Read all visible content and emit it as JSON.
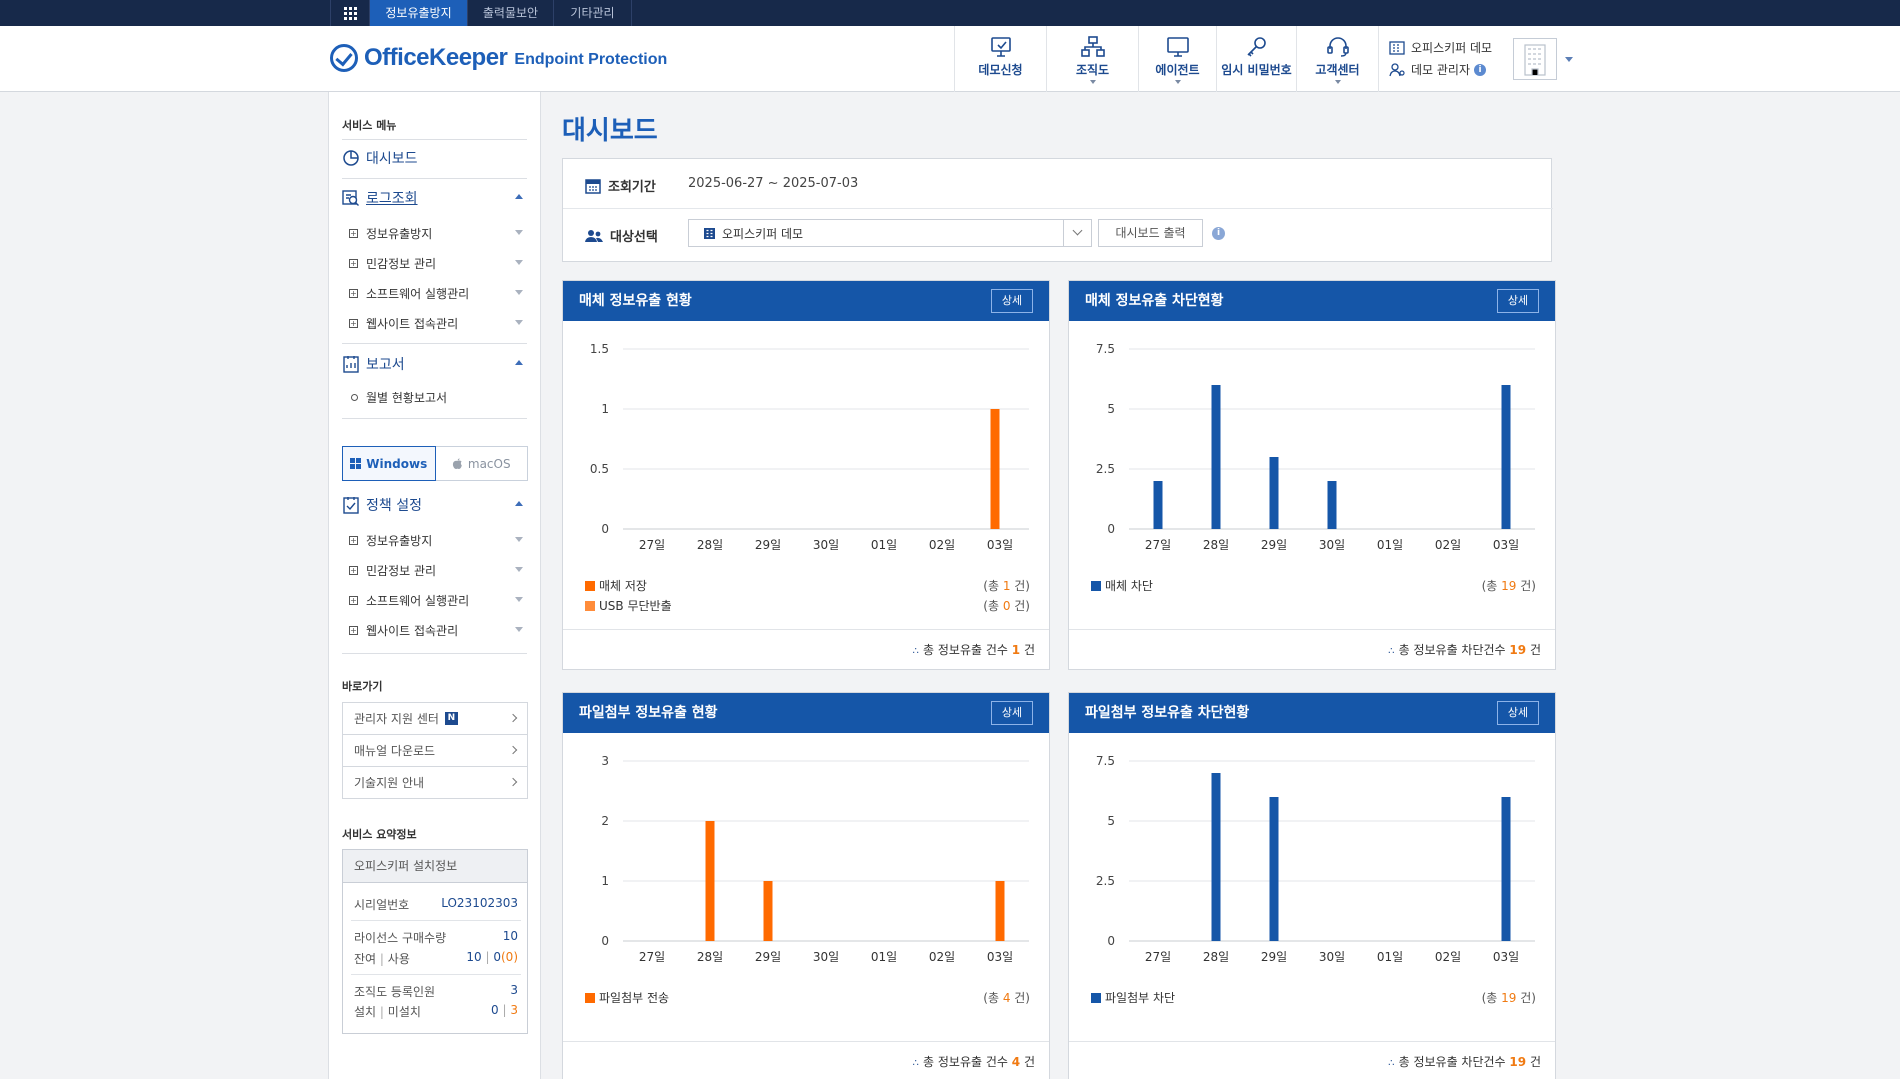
{
  "topnav": {
    "tabs": [
      {
        "label": "정보유출방지",
        "active": true
      },
      {
        "label": "출력물보안",
        "active": false
      },
      {
        "label": "기타관리",
        "active": false
      }
    ]
  },
  "header": {
    "logo_main": "OfficeKeeper",
    "logo_sub": "Endpoint Protection",
    "menu": [
      {
        "label": "데모신청",
        "icon": "demo-request-icon",
        "caret": false
      },
      {
        "label": "조직도",
        "icon": "org-chart-icon",
        "caret": true
      },
      {
        "label": "에이전트",
        "icon": "monitor-icon",
        "caret": true
      },
      {
        "label": "임시 비밀번호",
        "icon": "key-icon",
        "caret": false
      },
      {
        "label": "고객센터",
        "icon": "headset-icon",
        "caret": true
      }
    ],
    "company": "오피스키퍼 데모",
    "user": "데모 관리자"
  },
  "sidebar": {
    "caption": "서비스 메뉴",
    "dashboard": "대시보드",
    "log_title": "로그조회",
    "log_items": [
      "정보유출방지",
      "민감정보 관리",
      "소프트웨어 실행관리",
      "웹사이트 접속관리"
    ],
    "report_title": "보고서",
    "report_items": [
      "월별 현황보고서"
    ],
    "os": {
      "windows": "Windows",
      "macos": "macOS"
    },
    "policy_title": "정책 설정",
    "policy_items": [
      "정보유출방지",
      "민감정보 관리",
      "소프트웨어 실행관리",
      "웹사이트 접속관리"
    ],
    "shortcut_caption": "바로가기",
    "shortcuts": [
      "관리자 지원 센터",
      "매뉴얼 다운로드",
      "기술지원 안내"
    ],
    "new_badge": "N",
    "summary_caption": "서비스 요약정보",
    "summary": {
      "title": "오피스키퍼 설치정보",
      "serial_label": "시리얼번호",
      "serial": "LO23102303",
      "license_label": "라이선스 구매수량",
      "license": "10",
      "remain_label": "잔여",
      "use_label": "사용",
      "remain": "10",
      "use": "0",
      "use_extra": "(0)",
      "org_label": "조직도 등록인원",
      "org": "3",
      "install_label": "설치",
      "uninstall_label": "미설치",
      "install": "0",
      "uninstall": "3",
      "sep": "|"
    }
  },
  "main": {
    "title": "대시보드",
    "period_label": "조회기간",
    "period": "2025-06-27 ~ 2025-07-03",
    "target_label": "대상선택",
    "target_value": "오피스키퍼 데모",
    "print_button": "대시보드 출력",
    "detail_label": "상세"
  },
  "cards": [
    {
      "title": "매체 정보유출 현황",
      "legend": [
        {
          "label": "매체 저장",
          "color": "#ff6a00",
          "total": "1"
        },
        {
          "label": "USB 무단반출",
          "color": "#ff8c3a",
          "total": "0"
        }
      ],
      "footer_label": "총 정보유출 건수",
      "footer_value": "1"
    },
    {
      "title": "매체 정보유출 차단현황",
      "legend": [
        {
          "label": "매체 차단",
          "color": "#1556a8",
          "total": "19"
        }
      ],
      "footer_label": "총 정보유출 차단건수",
      "footer_value": "19"
    },
    {
      "title": "파일첨부 정보유출 현황",
      "legend": [
        {
          "label": "파일첨부 전송",
          "color": "#ff6a00",
          "total": "4"
        }
      ],
      "footer_label": "총 정보유출 건수",
      "footer_value": "4"
    },
    {
      "title": "파일첨부 정보유출 차단현황",
      "legend": [
        {
          "label": "파일첨부 차단",
          "color": "#1556a8",
          "total": "19"
        }
      ],
      "footer_label": "총 정보유출 차단건수",
      "footer_value": "19"
    }
  ],
  "legend_text": {
    "prefix": "(총 ",
    "suffix": " 건)",
    "unit": "건"
  },
  "chart_data": [
    {
      "type": "bar",
      "title": "매체 정보유출 현황",
      "categories": [
        "27일",
        "28일",
        "29일",
        "30일",
        "01일",
        "02일",
        "03일"
      ],
      "series": [
        {
          "name": "매체 저장",
          "values": [
            0,
            0,
            0,
            0,
            0,
            0,
            1
          ],
          "color": "#ff6a00"
        },
        {
          "name": "USB 무단반출",
          "values": [
            0,
            0,
            0,
            0,
            0,
            0,
            0
          ],
          "color": "#ff8c3a"
        }
      ],
      "yticks": [
        "0",
        "0.5",
        "1",
        "1.5"
      ],
      "ylim": [
        0,
        1.5
      ],
      "grid": true
    },
    {
      "type": "bar",
      "title": "매체 정보유출 차단현황",
      "categories": [
        "27일",
        "28일",
        "29일",
        "30일",
        "01일",
        "02일",
        "03일"
      ],
      "series": [
        {
          "name": "매체 차단",
          "values": [
            2,
            6,
            3,
            2,
            0,
            0,
            6
          ],
          "color": "#1556a8"
        }
      ],
      "yticks": [
        "0",
        "2.5",
        "5",
        "7.5"
      ],
      "ylim": [
        0,
        7.5
      ],
      "grid": true
    },
    {
      "type": "bar",
      "title": "파일첨부 정보유출 현황",
      "categories": [
        "27일",
        "28일",
        "29일",
        "30일",
        "01일",
        "02일",
        "03일"
      ],
      "series": [
        {
          "name": "파일첨부 전송",
          "values": [
            0,
            2,
            1,
            0,
            0,
            0,
            1
          ],
          "color": "#ff6a00"
        }
      ],
      "yticks": [
        "0",
        "1",
        "2",
        "3"
      ],
      "ylim": [
        0,
        3
      ],
      "grid": true
    },
    {
      "type": "bar",
      "title": "파일첨부 정보유출 차단현황",
      "categories": [
        "27일",
        "28일",
        "29일",
        "30일",
        "01일",
        "02일",
        "03일"
      ],
      "series": [
        {
          "name": "파일첨부 차단",
          "values": [
            0,
            7,
            6,
            0,
            0,
            0,
            6
          ],
          "color": "#1556a8"
        }
      ],
      "yticks": [
        "0",
        "2.5",
        "5",
        "7.5"
      ],
      "ylim": [
        0,
        7.5
      ],
      "grid": true
    }
  ]
}
